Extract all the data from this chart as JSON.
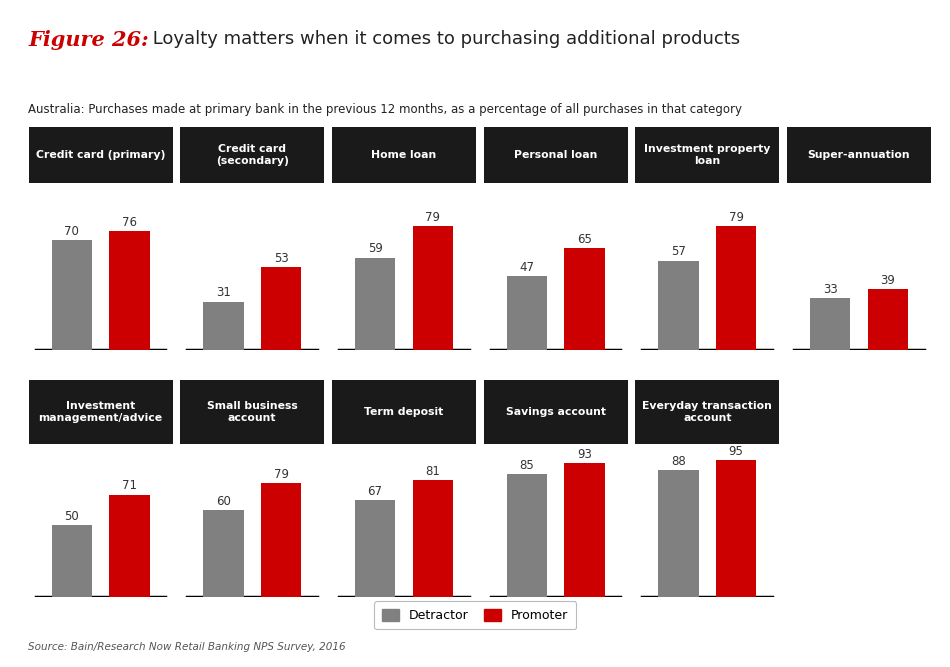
{
  "title_fig": "Figure 26:",
  "title_main": " Loyalty matters when it comes to purchasing additional products",
  "subtitle": "Australia: Purchases made at primary bank in the previous 12 months, as a percentage of all purchases in that category",
  "source": "Source: Bain/Research Now Retail Banking NPS Survey, 2016",
  "row1": [
    {
      "label": "Credit card (primary)",
      "detractor": 70,
      "promoter": 76
    },
    {
      "label": "Credit card\n(secondary)",
      "detractor": 31,
      "promoter": 53
    },
    {
      "label": "Home loan",
      "detractor": 59,
      "promoter": 79
    },
    {
      "label": "Personal loan",
      "detractor": 47,
      "promoter": 65
    },
    {
      "label": "Investment property\nloan",
      "detractor": 57,
      "promoter": 79
    },
    {
      "label": "Super-annuation",
      "detractor": 33,
      "promoter": 39
    }
  ],
  "row2": [
    {
      "label": "Investment\nmanagement/advice",
      "detractor": 50,
      "promoter": 71
    },
    {
      "label": "Small business\naccount",
      "detractor": 60,
      "promoter": 79
    },
    {
      "label": "Term deposit",
      "detractor": 67,
      "promoter": 81
    },
    {
      "label": "Savings account",
      "detractor": 85,
      "promoter": 93
    },
    {
      "label": "Everyday transaction\naccount",
      "detractor": 88,
      "promoter": 95
    }
  ],
  "detractor_color": "#808080",
  "promoter_color": "#cc0000",
  "header_bg": "#1a1a1a",
  "header_fg": "#ffffff",
  "ylim": [
    0,
    105
  ],
  "background_color": "#ffffff",
  "legend_detractor": "Detractor",
  "legend_promoter": "Promoter",
  "title_fig_color": "#cc0000",
  "title_main_color": "#222222",
  "subtitle_color": "#222222",
  "source_color": "#555555",
  "title_fig_size": 15,
  "title_main_size": 13,
  "subtitle_size": 8.5,
  "header_fontsize": 7.8,
  "value_fontsize": 8.5,
  "source_fontsize": 7.5,
  "legend_fontsize": 9
}
